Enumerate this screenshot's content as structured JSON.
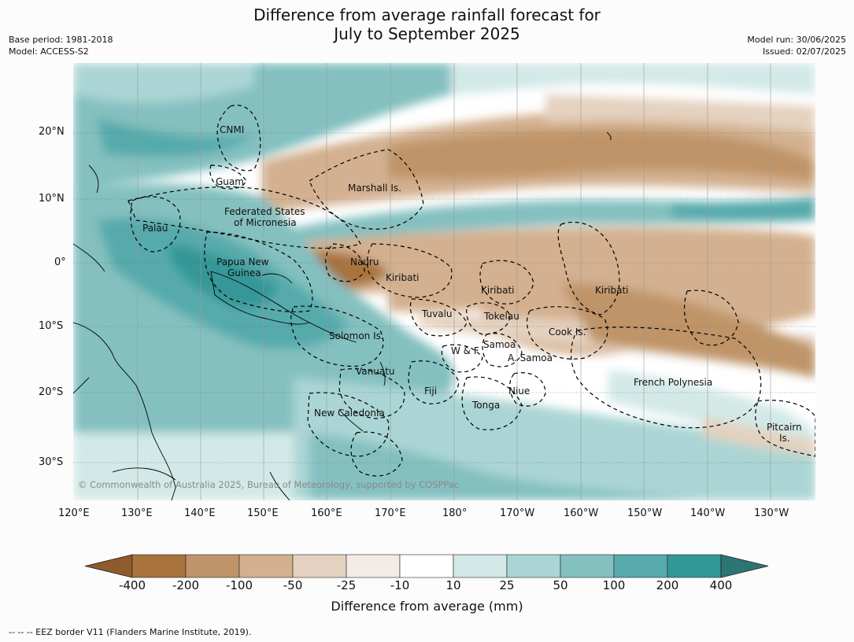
{
  "title": {
    "line1": "Difference from average rainfall forecast for",
    "line2": "July to September 2025"
  },
  "meta": {
    "base_period": "Base period: 1981-2018",
    "model": "Model: ACCESS-S2",
    "model_run": "Model run: 30/06/2025",
    "issued": "Issued: 02/07/2025"
  },
  "axes": {
    "lon_ticks": [
      "120°E",
      "130°E",
      "140°E",
      "150°E",
      "160°E",
      "170°E",
      "180°",
      "170°W",
      "160°W",
      "150°W",
      "140°W",
      "130°W"
    ],
    "lat_ticks": [
      "20°N",
      "10°N",
      "0°",
      "10°S",
      "20°S",
      "30°S"
    ]
  },
  "places": [
    {
      "id": "cnmi",
      "text": "CNMI"
    },
    {
      "id": "guam",
      "text": "Guam"
    },
    {
      "id": "marshall",
      "text": "Marshall Is."
    },
    {
      "id": "fsm1",
      "text": "Federated States"
    },
    {
      "id": "fsm2",
      "text": "of Micronesia"
    },
    {
      "id": "palau",
      "text": "Palau"
    },
    {
      "id": "png1",
      "text": "Papua New"
    },
    {
      "id": "png2",
      "text": "Guinea"
    },
    {
      "id": "nauru",
      "text": "Nauru"
    },
    {
      "id": "kiribati1",
      "text": "Kiribati"
    },
    {
      "id": "kiribati2",
      "text": "Kiribati"
    },
    {
      "id": "kiribati3",
      "text": "Kiribati"
    },
    {
      "id": "tuvalu",
      "text": "Tuvalu"
    },
    {
      "id": "tokelau",
      "text": "Tokelau"
    },
    {
      "id": "cook",
      "text": "Cook Is."
    },
    {
      "id": "solomon",
      "text": "Solomon Is."
    },
    {
      "id": "wf",
      "text": "W & F"
    },
    {
      "id": "samoa",
      "text": "Samoa"
    },
    {
      "id": "asamoa",
      "text": "A. Samoa"
    },
    {
      "id": "vanuatu",
      "text": "Vanuatu"
    },
    {
      "id": "fiji",
      "text": "Fiji"
    },
    {
      "id": "niue",
      "text": "Niue"
    },
    {
      "id": "tonga",
      "text": "Tonga"
    },
    {
      "id": "frpoly",
      "text": "French Polynesia"
    },
    {
      "id": "newcal",
      "text": "New Caledonia"
    },
    {
      "id": "pitcairn1",
      "text": "Pitcairn"
    },
    {
      "id": "pitcairn2",
      "text": "Is."
    }
  ],
  "credit": "© Commonwealth of Australia 2025, Bureau of Meteorology, supported by COSPPac",
  "colorbar": {
    "labels": [
      "-400",
      "-200",
      "-100",
      "-50",
      "-25",
      "-10",
      "10",
      "25",
      "50",
      "100",
      "200",
      "400"
    ],
    "colors": [
      "#8f5a2e",
      "#a8733d",
      "#bf9468",
      "#d3b08f",
      "#e4d1bf",
      "#f3ebe6",
      "#ffffff",
      "#d3e9e7",
      "#aad5d4",
      "#84c0c0",
      "#56aaab",
      "#349797",
      "#2d7575"
    ],
    "title": "Difference from average (mm)"
  },
  "legend": "--  --  -- EEZ border V11 (Flanders Marine Institute, 2019)."
}
